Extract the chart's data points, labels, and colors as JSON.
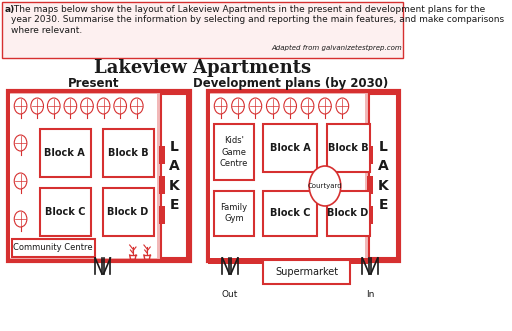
{
  "title": "Lakeview Apartments",
  "subtitle_present": "Present",
  "subtitle_future": "Development plans (by 2030)",
  "header_bold": "a)",
  "header_rest": " The maps below show the layout of Lakeview Apartments in the present and development plans for the\nyear 2030. Summarise the information by selecting and reporting the main features, and make comparisons\nwhere relevant.",
  "attribution": "Adapted from galvanizetestprep.com",
  "red": "#d63030",
  "light_red": "#f2b8b8",
  "very_light_red": "#fdf0f0",
  "black": "#1a1a1a",
  "white": "#ffffff",
  "bg": "#ffffff"
}
